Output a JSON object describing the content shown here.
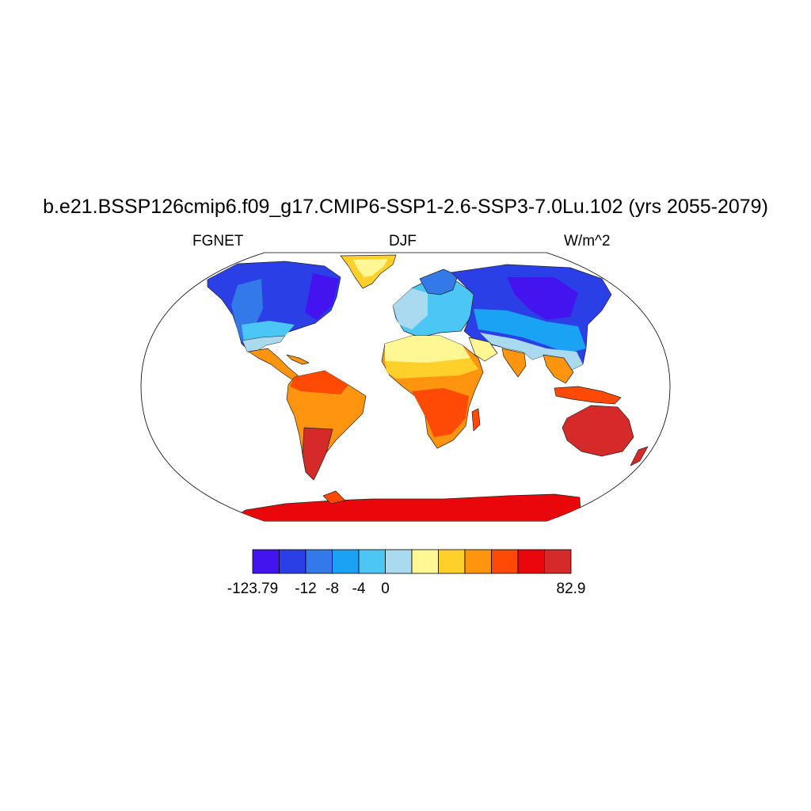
{
  "title": "b.e21.BSSP126cmip6.f09_g17.CMIP6-SSP1-2.6-SSP3-7.0Lu.102 (yrs 2055-2079)",
  "subtitles": {
    "left": "FGNET",
    "center": "DJF",
    "right": "W/m^2"
  },
  "colorbar": {
    "colors": [
      "#4414f0",
      "#2a3fe6",
      "#3479e8",
      "#1aa2f5",
      "#4cc6f5",
      "#a9daf0",
      "#fff694",
      "#ffd02a",
      "#ff950f",
      "#ff4a05",
      "#e8070a",
      "#d42a2a"
    ],
    "labels": [
      {
        "text": "-123.79",
        "boundary": 0
      },
      {
        "text": "-12",
        "boundary": 2
      },
      {
        "text": "-8",
        "boundary": 3
      },
      {
        "text": "-4",
        "boundary": 4
      },
      {
        "text": "0",
        "boundary": 5
      },
      {
        "text": "82.9",
        "boundary": 12
      }
    ]
  },
  "map": {
    "projection": "robinson"
  }
}
